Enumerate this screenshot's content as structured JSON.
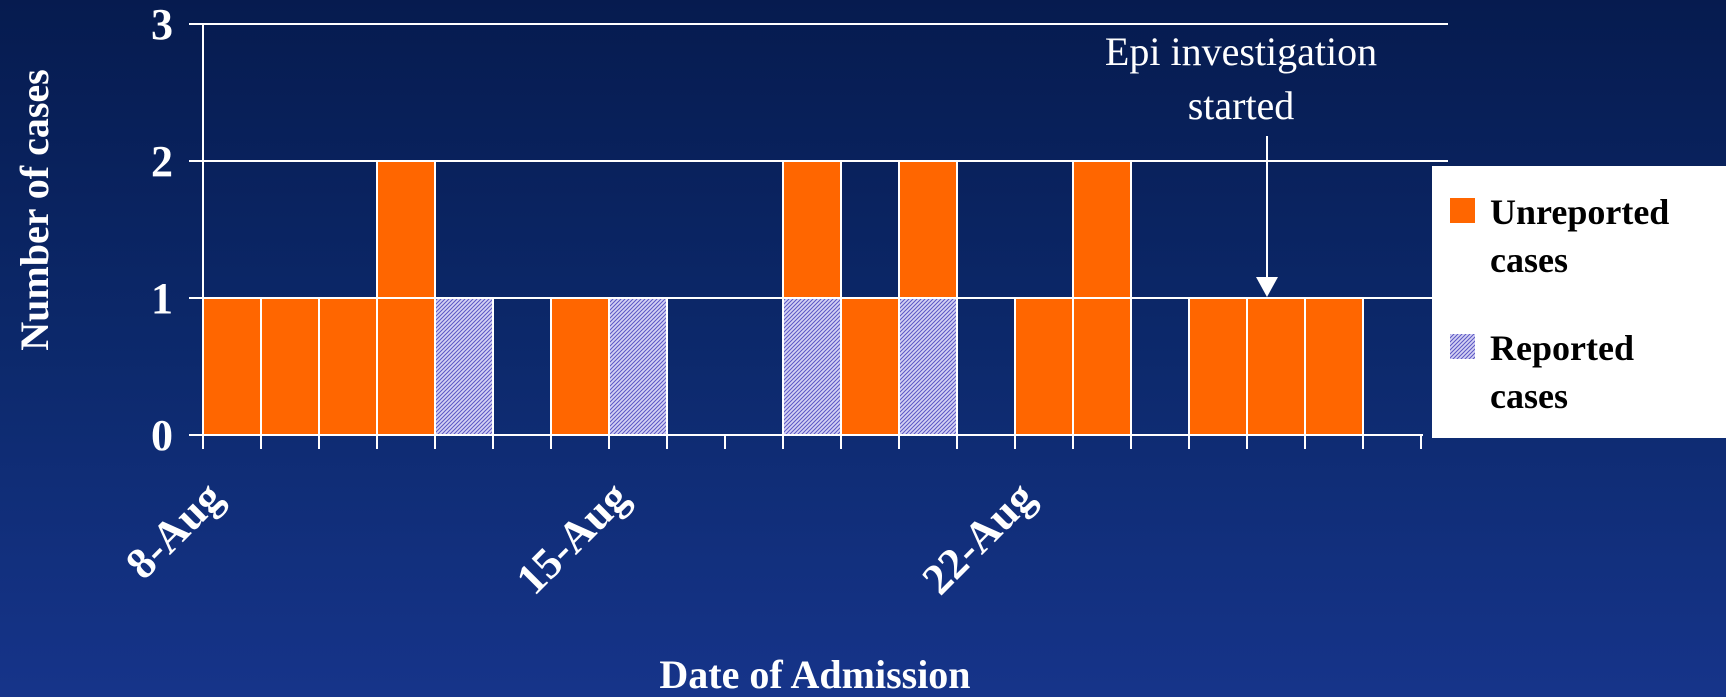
{
  "chart_data": {
    "type": "bar",
    "stacked": true,
    "title": "",
    "xlabel": "Date of Admission",
    "ylabel": "Number of cases",
    "ylim": [
      0,
      3
    ],
    "yticks": [
      0,
      1,
      2,
      3
    ],
    "x_tick_labels": [
      {
        "day": 8,
        "label": "8-Aug"
      },
      {
        "day": 15,
        "label": "15-Aug"
      },
      {
        "day": 22,
        "label": "22-Aug"
      }
    ],
    "days": [
      8,
      9,
      10,
      11,
      12,
      13,
      14,
      15,
      16,
      17,
      18,
      19,
      20,
      21,
      22,
      23,
      24,
      25,
      26,
      27,
      28
    ],
    "series": [
      {
        "name": "Reported cases",
        "color": "#b8b4ec",
        "pattern": "hatched",
        "values": [
          0,
          0,
          0,
          0,
          1,
          0,
          0,
          1,
          0,
          0,
          1,
          0,
          1,
          0,
          0,
          0,
          0,
          0,
          0,
          0,
          0
        ]
      },
      {
        "name": "Unreported cases",
        "color": "#ff6600",
        "pattern": "solid",
        "values": [
          1,
          1,
          1,
          2,
          0,
          0,
          1,
          0,
          0,
          0,
          1,
          1,
          1,
          0,
          1,
          2,
          0,
          1,
          1,
          1,
          0
        ]
      }
    ],
    "annotations": [
      {
        "text_lines": [
          "Epi investigation",
          "started"
        ],
        "day": 26
      }
    ],
    "grid": "horizontal",
    "legend": {
      "position": "right",
      "items": [
        {
          "series": 1,
          "lines": [
            "Unreported",
            "cases"
          ]
        },
        {
          "series": 0,
          "lines": [
            "Reported",
            "cases"
          ]
        }
      ]
    }
  }
}
